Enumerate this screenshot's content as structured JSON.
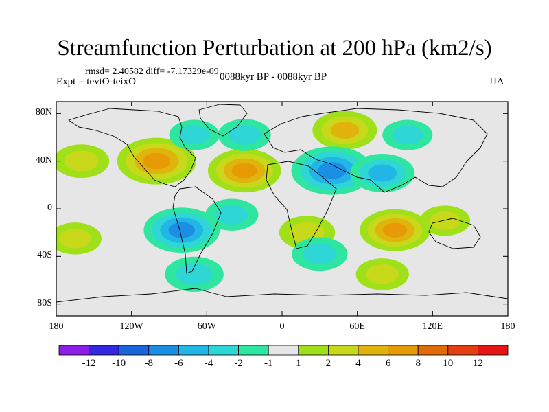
{
  "title": "Streamfunction Perturbation at 200 hPa (km2/s)",
  "stats": "rmsd= 2.40582 diff= -7.17329e-09",
  "experiment": "Expt = tevtO-teixO",
  "period": "0088kyr BP - 0088kyr BP",
  "season": "JJA",
  "axes": {
    "y_ticks": [
      {
        "label": "80N",
        "lat": 80
      },
      {
        "label": "40N",
        "lat": 40
      },
      {
        "label": "0",
        "lat": 0
      },
      {
        "label": "40S",
        "lat": -40
      },
      {
        "label": "80S",
        "lat": -80
      }
    ],
    "x_ticks": [
      {
        "label": "180",
        "lon": -180
      },
      {
        "label": "120W",
        "lon": -120
      },
      {
        "label": "60W",
        "lon": -60
      },
      {
        "label": "0",
        "lon": 0
      },
      {
        "label": "60E",
        "lon": 60
      },
      {
        "label": "120E",
        "lon": 120
      },
      {
        "label": "180",
        "lon": 180
      }
    ],
    "lon_range": [
      -180,
      180
    ],
    "lat_range": [
      -90,
      90
    ]
  },
  "colorbar": {
    "colors": [
      "#8c1fe6",
      "#3228e0",
      "#1a64dc",
      "#1b8fe3",
      "#22b6e6",
      "#2fd6d6",
      "#2ee6a0",
      "#e6e6e6",
      "#9fe018",
      "#c8d81a",
      "#e1b30d",
      "#e69a05",
      "#e06a08",
      "#e34012",
      "#e61515"
    ],
    "labels": [
      "-12",
      "-10",
      "-8",
      "-6",
      "-4",
      "-2",
      "-1",
      "1",
      "2",
      "4",
      "6",
      "8",
      "10",
      "12"
    ]
  },
  "chart_data": {
    "type": "heatmap",
    "title": "Streamfunction Perturbation at 200 hPa (km2/s)",
    "xlabel": "",
    "ylabel": "",
    "levels": [
      -12,
      -10,
      -8,
      -6,
      -4,
      -2,
      -1,
      1,
      2,
      4,
      6,
      8,
      10,
      12
    ],
    "anomaly_centers": [
      {
        "lon": -100,
        "lat": 40,
        "value": 7.5
      },
      {
        "lon": -30,
        "lat": 32,
        "value": 6.5
      },
      {
        "lon": 50,
        "lat": 66,
        "value": 5.0
      },
      {
        "lon": -160,
        "lat": 40,
        "value": 3.5
      },
      {
        "lon": -165,
        "lat": -25,
        "value": 3.0
      },
      {
        "lon": 20,
        "lat": -20,
        "value": 3.5
      },
      {
        "lon": 90,
        "lat": -18,
        "value": 6.0
      },
      {
        "lon": 130,
        "lat": -10,
        "value": 2.5
      },
      {
        "lon": 80,
        "lat": -55,
        "value": 3.0
      },
      {
        "lon": 40,
        "lat": 32,
        "value": -8.0
      },
      {
        "lon": 80,
        "lat": 30,
        "value": -5.0
      },
      {
        "lon": -80,
        "lat": -18,
        "value": -7.0
      },
      {
        "lon": -70,
        "lat": -55,
        "value": -4.0
      },
      {
        "lon": 30,
        "lat": -38,
        "value": -3.5
      },
      {
        "lon": -30,
        "lat": 62,
        "value": -3.0
      },
      {
        "lon": -70,
        "lat": 62,
        "value": -2.5
      },
      {
        "lon": 100,
        "lat": 62,
        "value": -2.5
      },
      {
        "lon": -40,
        "lat": -5,
        "value": -3.0
      }
    ]
  }
}
